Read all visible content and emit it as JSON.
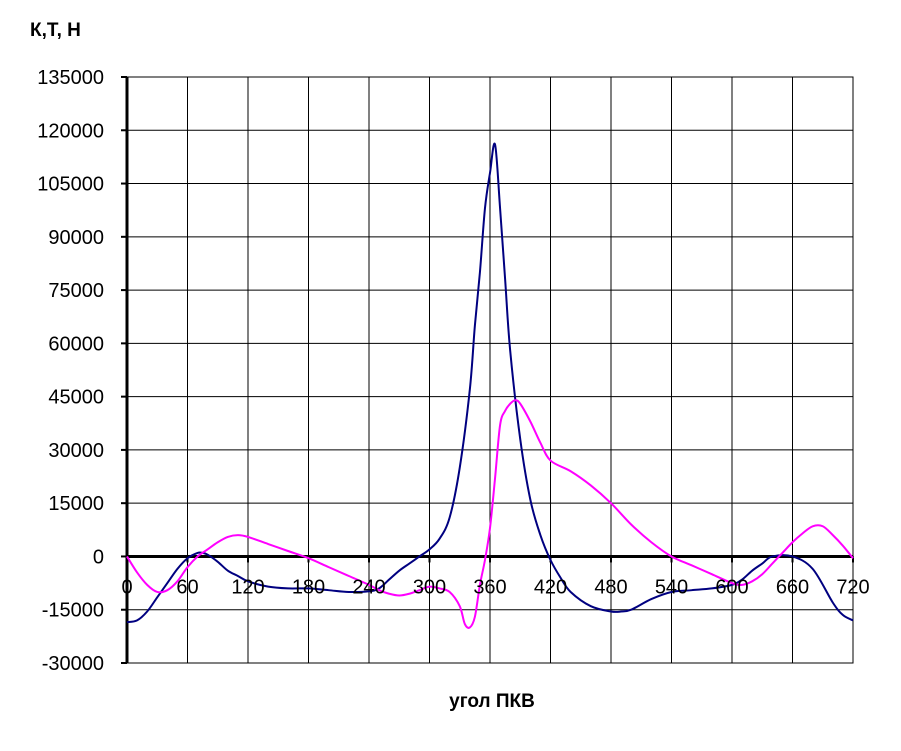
{
  "chart_data": {
    "type": "line",
    "ylabel": "К,Т, Н",
    "xlabel": "угол  ПКВ",
    "xlim": [
      0,
      720
    ],
    "ylim": [
      -30000,
      135000
    ],
    "x_ticks": [
      0,
      60,
      120,
      180,
      240,
      300,
      360,
      420,
      480,
      540,
      600,
      660,
      720
    ],
    "y_ticks": [
      -30000,
      -15000,
      0,
      15000,
      30000,
      45000,
      60000,
      75000,
      90000,
      105000,
      120000,
      135000
    ],
    "x_tick_labels": [
      "0",
      "60",
      "120",
      "180",
      "240",
      "300",
      "360",
      "420",
      "480",
      "540",
      "600",
      "660",
      "720"
    ],
    "y_tick_labels": [
      "-30000",
      "-15000",
      "0",
      "15000",
      "30000",
      "45000",
      "60000",
      "75000",
      "90000",
      "105000",
      "120000",
      "135000"
    ],
    "grid": true,
    "legend": "none",
    "series": [
      {
        "color": "#000080",
        "x": [
          0,
          10,
          20,
          30,
          40,
          50,
          60,
          70,
          75,
          80,
          90,
          100,
          110,
          120,
          140,
          160,
          180,
          200,
          220,
          240,
          250,
          260,
          270,
          280,
          290,
          300,
          310,
          320,
          330,
          340,
          345,
          350,
          355,
          360,
          365,
          370,
          375,
          380,
          390,
          400,
          410,
          420,
          430,
          440,
          460,
          480,
          490,
          500,
          520,
          540,
          560,
          580,
          600,
          610,
          620,
          630,
          640,
          660,
          680,
          700,
          710,
          720
        ],
        "y": [
          -18500,
          -18000,
          -15500,
          -11500,
          -7500,
          -3500,
          -500,
          1000,
          1000,
          500,
          -1500,
          -4000,
          -5500,
          -7000,
          -8500,
          -9000,
          -9000,
          -9500,
          -10000,
          -9800,
          -9000,
          -6500,
          -4000,
          -2000,
          0,
          2000,
          5000,
          11000,
          25000,
          47000,
          65000,
          80000,
          98000,
          108000,
          116000,
          98000,
          78000,
          58000,
          33000,
          16000,
          6000,
          -1000,
          -6000,
          -10000,
          -14000,
          -15500,
          -15500,
          -15000,
          -12000,
          -10000,
          -9500,
          -9000,
          -8000,
          -6500,
          -4000,
          -2000,
          0,
          0,
          -3500,
          -13000,
          -16500,
          -18000
        ]
      },
      {
        "color": "#ff00ff",
        "x": [
          0,
          10,
          20,
          30,
          40,
          50,
          60,
          70,
          80,
          90,
          100,
          110,
          120,
          140,
          160,
          180,
          200,
          220,
          240,
          250,
          260,
          270,
          280,
          290,
          300,
          310,
          320,
          330,
          335,
          340,
          345,
          350,
          355,
          360,
          365,
          370,
          375,
          380,
          385,
          390,
          400,
          410,
          420,
          440,
          460,
          480,
          500,
          520,
          540,
          560,
          580,
          600,
          610,
          620,
          630,
          640,
          650,
          660,
          670,
          680,
          690,
          700,
          710,
          720
        ],
        "y": [
          0,
          -4500,
          -8000,
          -10000,
          -9500,
          -7000,
          -3000,
          0,
          2000,
          4000,
          5500,
          6000,
          5500,
          3500,
          1500,
          -500,
          -3000,
          -5500,
          -8000,
          -9500,
          -10500,
          -11000,
          -10500,
          -9500,
          -8500,
          -9000,
          -10000,
          -14000,
          -19000,
          -20000,
          -17000,
          -8000,
          -1000,
          8000,
          22000,
          37000,
          41000,
          43000,
          44000,
          43000,
          38000,
          32000,
          27000,
          24000,
          20000,
          15000,
          9000,
          4000,
          0,
          -2500,
          -5000,
          -7500,
          -8000,
          -7000,
          -5000,
          -2000,
          1000,
          4000,
          6500,
          8500,
          8500,
          6000,
          3000,
          -500
        ]
      }
    ]
  }
}
